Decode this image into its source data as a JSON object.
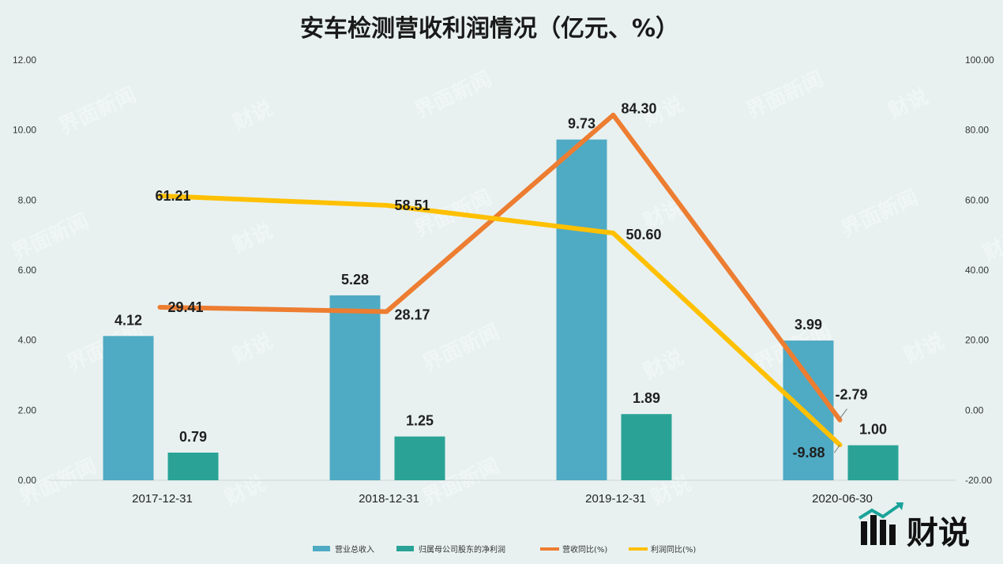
{
  "chart_data": {
    "type": "bar",
    "title": "安车检测营收利润情况（亿元、%）",
    "categories": [
      "2017-12-31",
      "2018-12-31",
      "2019-12-31",
      "2020-06-30"
    ],
    "y_left": {
      "lim": [
        0,
        12
      ],
      "ticks": [
        "0.00",
        "2.00",
        "4.00",
        "6.00",
        "8.00",
        "10.00",
        "12.00"
      ]
    },
    "y_right": {
      "lim": [
        -20,
        100
      ],
      "ticks": [
        "-20.00",
        "0.00",
        "20.00",
        "40.00",
        "60.00",
        "80.00",
        "100.00"
      ]
    },
    "series": [
      {
        "name": "营业总收入",
        "kind": "bar",
        "axis": "left",
        "color": "#4faac4",
        "values": [
          4.12,
          5.28,
          9.73,
          3.99
        ],
        "labels": [
          "4.12",
          "5.28",
          "9.73",
          "3.99"
        ]
      },
      {
        "name": "归属母公司股东的净利润",
        "kind": "bar",
        "axis": "left",
        "color": "#2aa396",
        "values": [
          0.79,
          1.25,
          1.89,
          1.0
        ],
        "labels": [
          "0.79",
          "1.25",
          "1.89",
          "1.00"
        ]
      },
      {
        "name": "营收同比(%)",
        "kind": "line",
        "axis": "right",
        "color": "#ed7d31",
        "values": [
          29.41,
          28.17,
          84.3,
          -2.79
        ],
        "labels": [
          "29.41",
          "28.17",
          "84.30",
          "-2.79"
        ]
      },
      {
        "name": "利润同比(%)",
        "kind": "line",
        "axis": "right",
        "color": "#ffc000",
        "values": [
          61.21,
          58.51,
          50.6,
          -9.88
        ],
        "labels": [
          "61.21",
          "58.51",
          "50.60",
          "-9.88"
        ]
      }
    ],
    "legend_position": "bottom",
    "grid": false
  },
  "watermark": {
    "text": "界面新闻",
    "brand": "财说"
  },
  "logo": {
    "text": "财说"
  }
}
